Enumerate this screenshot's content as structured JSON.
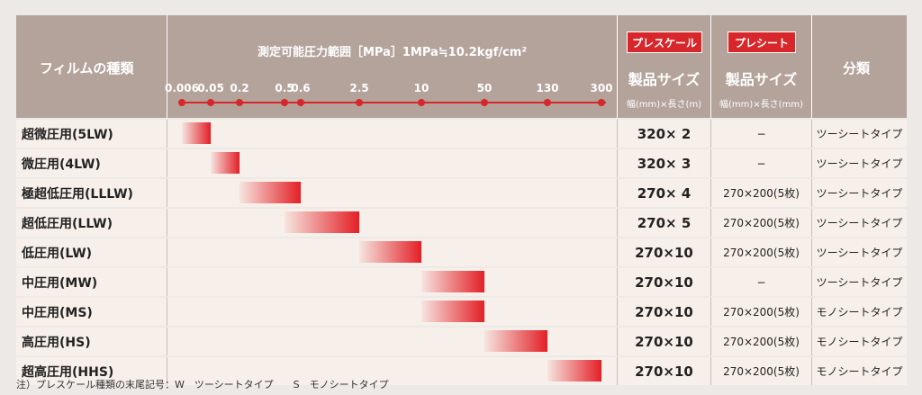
{
  "header": {
    "film_label": "フィルムの種類",
    "pressure_title": "測定可能圧力範囲［MPa］1MPa≒10.2kgf/cm²",
    "ticks": [
      "0.006",
      "0.05",
      "0.2",
      "0.5",
      "0.6",
      "2.5",
      "10",
      "50",
      "130",
      "300"
    ],
    "prescale_badge": "プレスケール",
    "presheet_badge": "プレシート",
    "size_label": "製品サイズ",
    "prescale_unit": "幅(mm)×長さ(m)",
    "presheet_unit": "幅(mm)×長さ(mm)",
    "class_label": "分類"
  },
  "rows": [
    {
      "film": "超微圧用(5LW)",
      "range": [
        0.006,
        0.05
      ],
      "prescale": "320× 2",
      "presheet": "−",
      "cls": "ツーシートタイプ"
    },
    {
      "film": "微圧用(4LW)",
      "range": [
        0.05,
        0.2
      ],
      "prescale": "320× 3",
      "presheet": "−",
      "cls": "ツーシートタイプ"
    },
    {
      "film": "極超低圧用(LLLW)",
      "range": [
        0.2,
        0.6
      ],
      "prescale": "270× 4",
      "presheet": "270×200(5枚)",
      "cls": "ツーシートタイプ"
    },
    {
      "film": "超低圧用(LLW)",
      "range": [
        0.5,
        2.5
      ],
      "prescale": "270× 5",
      "presheet": "270×200(5枚)",
      "cls": "ツーシートタイプ"
    },
    {
      "film": "低圧用(LW)",
      "range": [
        2.5,
        10
      ],
      "prescale": "270×10",
      "presheet": "270×200(5枚)",
      "cls": "ツーシートタイプ"
    },
    {
      "film": "中圧用(MW)",
      "range": [
        10,
        50
      ],
      "prescale": "270×10",
      "presheet": "−",
      "cls": "ツーシートタイプ"
    },
    {
      "film": "中圧用(MS)",
      "range": [
        10,
        50
      ],
      "prescale": "270×10",
      "presheet": "270×200(5枚)",
      "cls": "モノシートタイプ"
    },
    {
      "film": "高圧用(HS)",
      "range": [
        50,
        130
      ],
      "prescale": "270×10",
      "presheet": "270×200(5枚)",
      "cls": "モノシートタイプ"
    },
    {
      "film": "超高圧用(HHS)",
      "range": [
        130,
        300
      ],
      "prescale": "270×10",
      "presheet": "270×200(5枚)",
      "cls": "モノシートタイプ"
    }
  ],
  "note": "注）プレスケール種類の末尾記号：W　ツーシートタイプ　　S　モノシートタイプ",
  "colors": {
    "header_bg": "#b3a39b",
    "accent": "#d7272b",
    "row_bg": "#f7f0ea"
  }
}
